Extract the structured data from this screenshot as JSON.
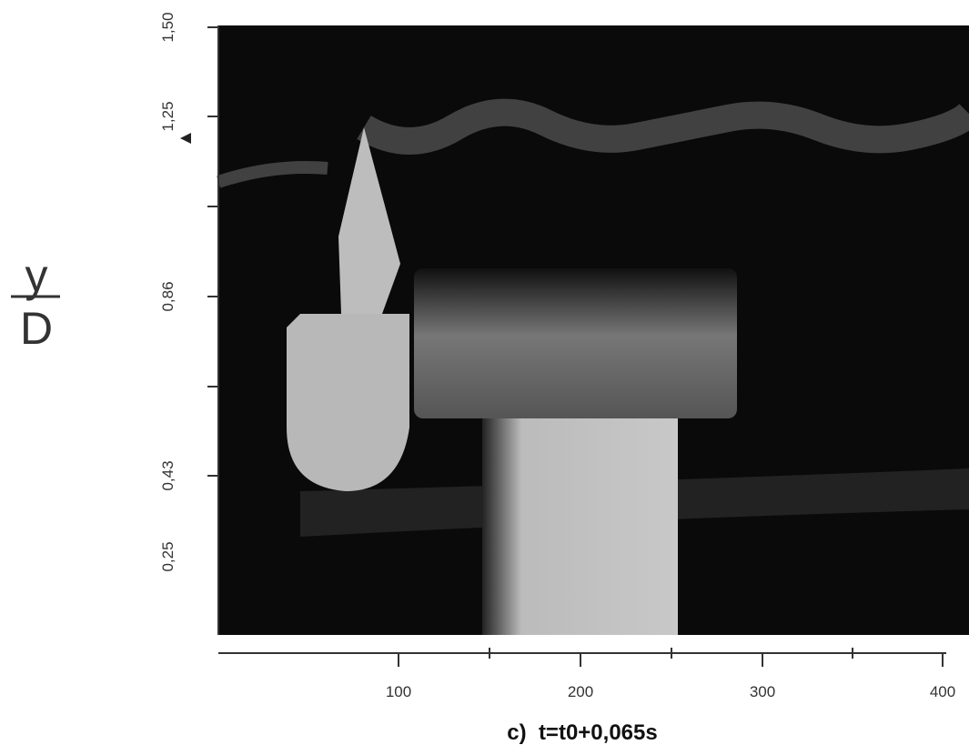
{
  "y_axis": {
    "label_numerator": "y",
    "label_denominator": "D",
    "ticks": [
      "1,50",
      "1,25",
      "0,86",
      "0,43",
      "0,25"
    ]
  },
  "x_axis": {
    "ticks": [
      100,
      200,
      300,
      400
    ]
  },
  "caption": "c)  t=t0+0,065s"
}
